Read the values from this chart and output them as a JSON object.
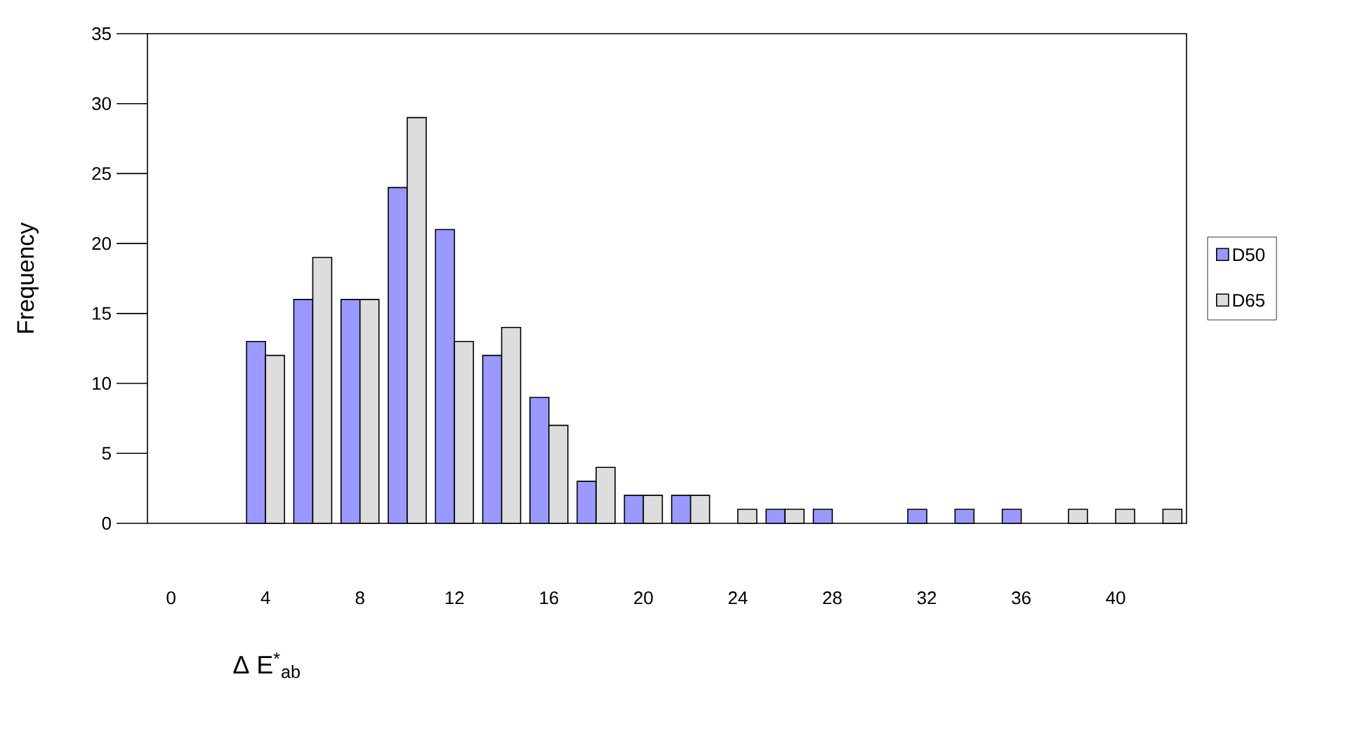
{
  "chart_data": {
    "type": "bar",
    "xlabel": "Δ E$^{*}$$_{ab}$",
    "ylabel": "Frequency",
    "categories": [
      "0",
      null,
      "4",
      null,
      "8",
      null,
      "12",
      null,
      "16",
      null,
      "20",
      null,
      "24",
      null,
      "28",
      null,
      "32",
      null,
      "36",
      null,
      "40",
      null
    ],
    "series": [
      {
        "name": "D50",
        "color": "#9999ff",
        "values": [
          0,
          0,
          13,
          16,
          16,
          24,
          21,
          12,
          9,
          3,
          2,
          2,
          0,
          1,
          1,
          0,
          1,
          1,
          1,
          0,
          0,
          0
        ]
      },
      {
        "name": "D65",
        "color": "#dddddd",
        "values": [
          0,
          0,
          12,
          19,
          16,
          29,
          13,
          14,
          7,
          4,
          2,
          2,
          1,
          1,
          0,
          0,
          0,
          0,
          0,
          1,
          1,
          1
        ]
      }
    ],
    "ylim": [
      0,
      35
    ],
    "yticks": [
      0,
      5,
      10,
      15,
      20,
      25,
      30,
      35
    ],
    "grid": false,
    "legend": "right"
  }
}
